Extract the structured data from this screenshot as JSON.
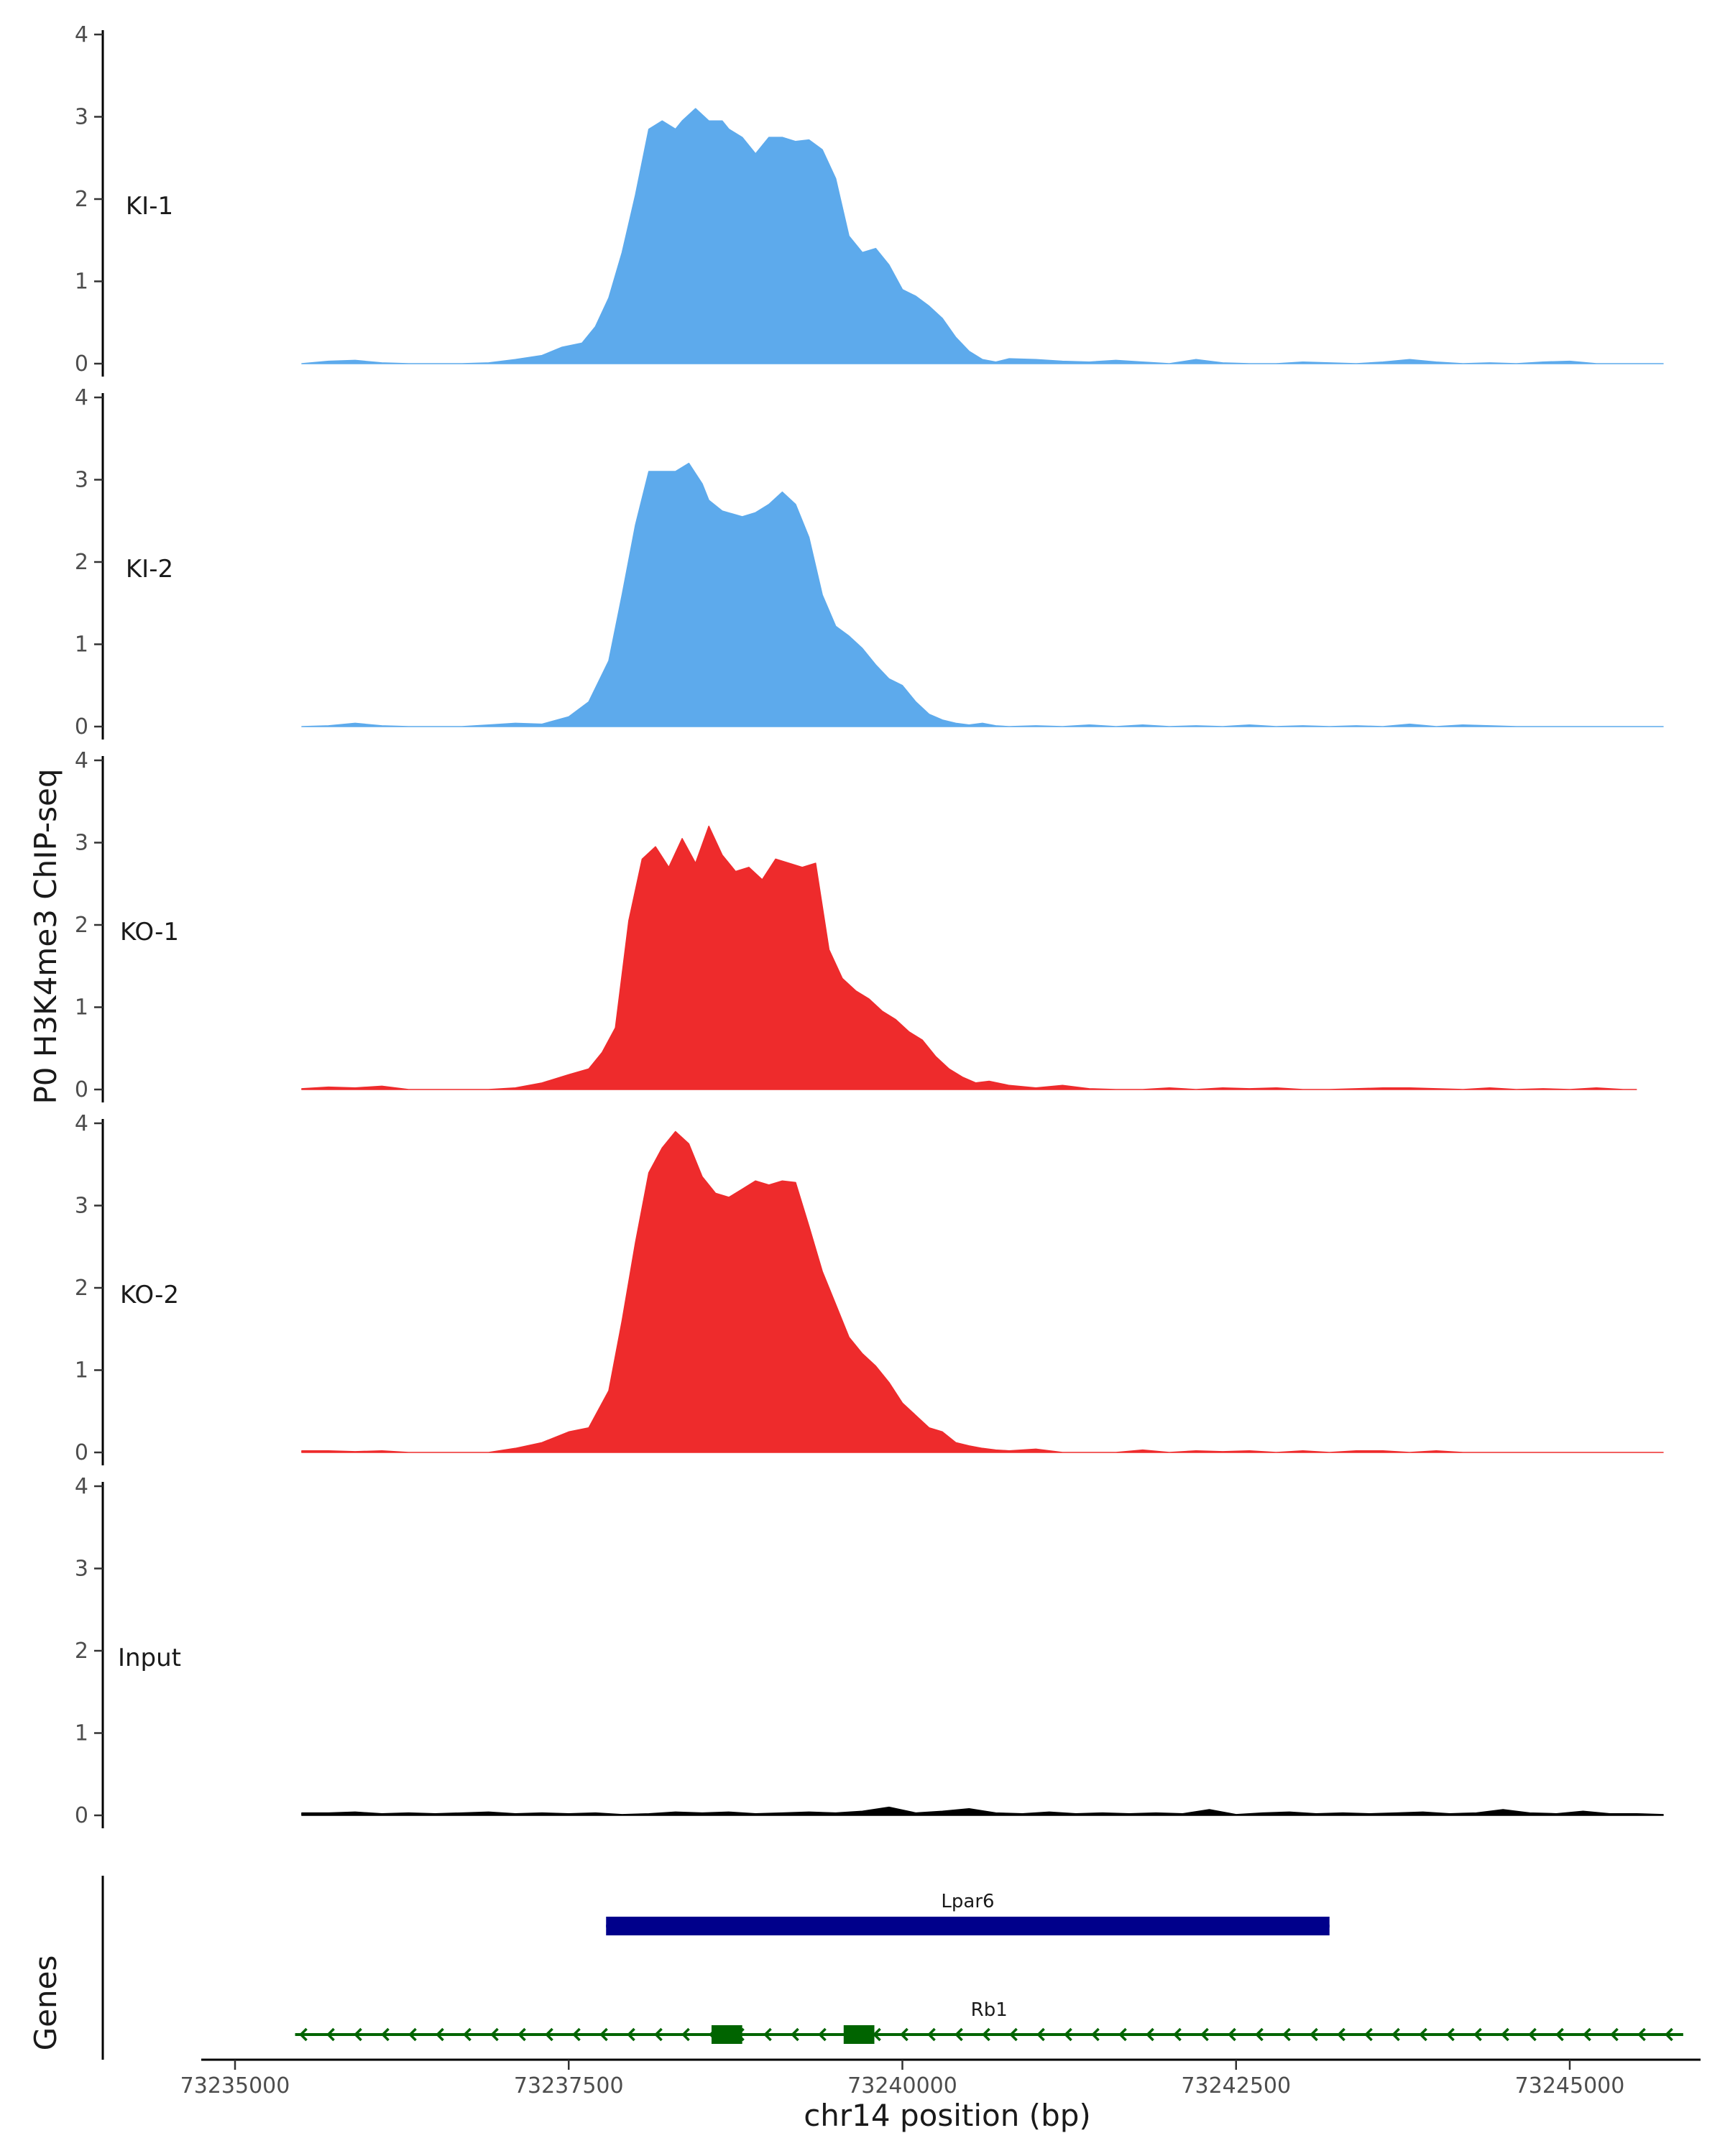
{
  "chart_data": {
    "type": "area",
    "ylabel": "P0 H3K4me3 ChIP-seq",
    "xlabel": "chr14 position (bp)",
    "xlim": [
      73234800,
      73246200
    ],
    "ylim": [
      0,
      4
    ],
    "yticks": [
      0,
      1,
      2,
      3,
      4
    ],
    "xticks": [
      73235000,
      73237500,
      73240000,
      73242500,
      73245000
    ],
    "xtick_labels": [
      "73235000",
      "73237500",
      "73240000",
      "73242500",
      "73245000"
    ],
    "tracks": [
      {
        "name": "KI-1",
        "color": "#5DAAEC",
        "x": [
          73235500,
          73235700,
          73235900,
          73236100,
          73236300,
          73236500,
          73236700,
          73236900,
          73237100,
          73237300,
          73237450,
          73237600,
          73237700,
          73237800,
          73237900,
          73238000,
          73238100,
          73238200,
          73238300,
          73238350,
          73238450,
          73238550,
          73238650,
          73238700,
          73238800,
          73238900,
          73239000,
          73239100,
          73239200,
          73239300,
          73239400,
          73239500,
          73239600,
          73239700,
          73239800,
          73239900,
          73240000,
          73240100,
          73240200,
          73240300,
          73240400,
          73240500,
          73240600,
          73240700,
          73240800,
          73241000,
          73241200,
          73241400,
          73241600,
          73241800,
          73242000,
          73242200,
          73242400,
          73242600,
          73242800,
          73243000,
          73243200,
          73243400,
          73243600,
          73243800,
          73244000,
          73244200,
          73244400,
          73244600,
          73244800,
          73245000,
          73245200,
          73245400,
          73245700
        ],
        "y": [
          0,
          0.03,
          0.04,
          0.01,
          0,
          0,
          0,
          0.01,
          0.05,
          0.1,
          0.2,
          0.25,
          0.45,
          0.8,
          1.35,
          2.05,
          2.85,
          2.95,
          2.85,
          2.95,
          3.1,
          2.95,
          2.95,
          2.85,
          2.75,
          2.55,
          2.75,
          2.75,
          2.7,
          2.72,
          2.6,
          2.25,
          1.55,
          1.35,
          1.4,
          1.2,
          0.9,
          0.82,
          0.7,
          0.55,
          0.32,
          0.15,
          0.05,
          0.02,
          0.06,
          0.05,
          0.03,
          0.02,
          0.04,
          0.02,
          0,
          0.05,
          0.01,
          0,
          0,
          0.02,
          0.01,
          0,
          0.02,
          0.05,
          0.02,
          0,
          0.01,
          0,
          0.02,
          0.03,
          0,
          0,
          0
        ]
      },
      {
        "name": "KI-2",
        "color": "#5DAAEC",
        "x": [
          73235500,
          73235700,
          73235900,
          73236100,
          73236300,
          73236500,
          73236700,
          73236900,
          73237100,
          73237300,
          73237500,
          73237650,
          73237800,
          73237900,
          73238000,
          73238100,
          73238200,
          73238300,
          73238400,
          73238500,
          73238550,
          73238650,
          73238800,
          73238900,
          73239000,
          73239100,
          73239200,
          73239300,
          73239400,
          73239500,
          73239600,
          73239700,
          73239800,
          73239900,
          73240000,
          73240100,
          73240200,
          73240300,
          73240400,
          73240500,
          73240600,
          73240700,
          73240800,
          73241000,
          73241200,
          73241400,
          73241600,
          73241800,
          73242000,
          73242200,
          73242400,
          73242600,
          73242800,
          73243000,
          73243200,
          73243400,
          73243600,
          73243800,
          73244000,
          73244200,
          73244400,
          73244600,
          73244800,
          73245000,
          73245200,
          73245400,
          73245700
        ],
        "y": [
          0,
          0.01,
          0.04,
          0.01,
          0,
          0,
          0,
          0.02,
          0.04,
          0.03,
          0.12,
          0.3,
          0.8,
          1.6,
          2.45,
          3.1,
          3.1,
          3.1,
          3.2,
          2.95,
          2.75,
          2.62,
          2.55,
          2.6,
          2.7,
          2.85,
          2.7,
          2.3,
          1.6,
          1.22,
          1.1,
          0.95,
          0.75,
          0.58,
          0.5,
          0.3,
          0.15,
          0.08,
          0.04,
          0.02,
          0.04,
          0.01,
          0,
          0.01,
          0,
          0.02,
          0,
          0.02,
          0,
          0.01,
          0,
          0.02,
          0,
          0.01,
          0,
          0.01,
          0,
          0.03,
          0,
          0.02,
          0.01,
          0,
          0,
          0,
          0,
          0,
          0
        ]
      },
      {
        "name": "KO-1",
        "color": "#EE2B2C",
        "x": [
          73235500,
          73235700,
          73235900,
          73236100,
          73236300,
          73236500,
          73236700,
          73236900,
          73237100,
          73237300,
          73237500,
          73237650,
          73237750,
          73237850,
          73237950,
          73238050,
          73238150,
          73238250,
          73238350,
          73238450,
          73238550,
          73238650,
          73238750,
          73238850,
          73238950,
          73239050,
          73239150,
          73239250,
          73239350,
          73239450,
          73239550,
          73239650,
          73239750,
          73239850,
          73239950,
          73240050,
          73240150,
          73240250,
          73240350,
          73240450,
          73240550,
          73240650,
          73240800,
          73241000,
          73241200,
          73241400,
          73241600,
          73241800,
          73242000,
          73242200,
          73242400,
          73242600,
          73242800,
          73243000,
          73243200,
          73243400,
          73243600,
          73243800,
          73244000,
          73244200,
          73244400,
          73244600,
          73244800,
          73245000,
          73245200,
          73245400,
          73245500
        ],
        "y": [
          0.01,
          0.03,
          0.02,
          0.04,
          0,
          0,
          0,
          0,
          0.02,
          0.08,
          0.18,
          0.25,
          0.45,
          0.75,
          2.05,
          2.8,
          2.95,
          2.7,
          3.05,
          2.75,
          3.2,
          2.85,
          2.65,
          2.7,
          2.55,
          2.8,
          2.75,
          2.7,
          2.75,
          1.7,
          1.35,
          1.2,
          1.1,
          0.95,
          0.85,
          0.7,
          0.6,
          0.4,
          0.25,
          0.15,
          0.08,
          0.1,
          0.05,
          0.02,
          0.05,
          0.01,
          0,
          0,
          0.02,
          0,
          0.02,
          0.01,
          0.02,
          0,
          0,
          0.01,
          0.02,
          0.02,
          0.01,
          0,
          0.02,
          0,
          0.01,
          0,
          0.02,
          0,
          0
        ]
      },
      {
        "name": "KO-2",
        "color": "#EE2B2C",
        "x": [
          73235500,
          73235700,
          73235900,
          73236100,
          73236300,
          73236500,
          73236700,
          73236900,
          73237100,
          73237300,
          73237500,
          73237650,
          73237800,
          73237900,
          73238000,
          73238100,
          73238200,
          73238300,
          73238400,
          73238500,
          73238600,
          73238700,
          73238800,
          73238900,
          73239000,
          73239100,
          73239200,
          73239300,
          73239400,
          73239500,
          73239600,
          73239700,
          73239800,
          73239900,
          73240000,
          73240100,
          73240200,
          73240300,
          73240400,
          73240500,
          73240600,
          73240700,
          73240800,
          73241000,
          73241200,
          73241400,
          73241600,
          73241800,
          73242000,
          73242200,
          73242400,
          73242600,
          73242800,
          73243000,
          73243200,
          73243400,
          73243600,
          73243800,
          73244000,
          73244200,
          73244400,
          73244600,
          73244800,
          73245000,
          73245200,
          73245400,
          73245700
        ],
        "y": [
          0.02,
          0.02,
          0.01,
          0.02,
          0,
          0,
          0,
          0,
          0.05,
          0.12,
          0.25,
          0.3,
          0.75,
          1.6,
          2.55,
          3.4,
          3.7,
          3.9,
          3.75,
          3.35,
          3.15,
          3.1,
          3.2,
          3.3,
          3.25,
          3.3,
          3.28,
          2.75,
          2.2,
          1.8,
          1.4,
          1.2,
          1.05,
          0.85,
          0.6,
          0.45,
          0.3,
          0.25,
          0.12,
          0.08,
          0.05,
          0.03,
          0.02,
          0.04,
          0,
          0,
          0,
          0.03,
          0,
          0.02,
          0.01,
          0.02,
          0,
          0.02,
          0,
          0.02,
          0.02,
          0,
          0.02,
          0,
          0,
          0,
          0,
          0,
          0,
          0,
          0
        ]
      },
      {
        "name": "Input",
        "color": "#000000",
        "x": [
          73235500,
          73235700,
          73235900,
          73236100,
          73236300,
          73236500,
          73236700,
          73236900,
          73237100,
          73237300,
          73237500,
          73237700,
          73237900,
          73238100,
          73238300,
          73238500,
          73238700,
          73238900,
          73239100,
          73239300,
          73239500,
          73239700,
          73239900,
          73240100,
          73240300,
          73240500,
          73240700,
          73240900,
          73241100,
          73241300,
          73241500,
          73241700,
          73241900,
          73242100,
          73242300,
          73242500,
          73242700,
          73242900,
          73243100,
          73243300,
          73243500,
          73243700,
          73243900,
          73244100,
          73244300,
          73244500,
          73244700,
          73244900,
          73245100,
          73245300,
          73245500,
          73245700
        ],
        "y": [
          0.03,
          0.03,
          0.04,
          0.02,
          0.03,
          0.02,
          0.03,
          0.04,
          0.02,
          0.03,
          0.02,
          0.03,
          0.01,
          0.02,
          0.04,
          0.03,
          0.04,
          0.02,
          0.03,
          0.04,
          0.03,
          0.05,
          0.1,
          0.03,
          0.05,
          0.08,
          0.03,
          0.02,
          0.04,
          0.02,
          0.03,
          0.02,
          0.03,
          0.02,
          0.07,
          0.01,
          0.03,
          0.04,
          0.02,
          0.03,
          0.02,
          0.03,
          0.04,
          0.02,
          0.03,
          0.07,
          0.03,
          0.02,
          0.05,
          0.02,
          0.02,
          0.01
        ]
      }
    ],
    "genes_axis_label": "Genes",
    "genes": [
      {
        "name": "Lpar6",
        "color": "#00008B",
        "strand": "-",
        "start": 73237780,
        "end": 73243200,
        "exons": [
          [
            73237780,
            73243200
          ]
        ]
      },
      {
        "name": "Rb1",
        "color": "#006400",
        "strand": "-",
        "start": 73235450,
        "end": 73245850,
        "exons": [
          [
            73238570,
            73238800
          ],
          [
            73239560,
            73239790
          ]
        ]
      }
    ]
  }
}
